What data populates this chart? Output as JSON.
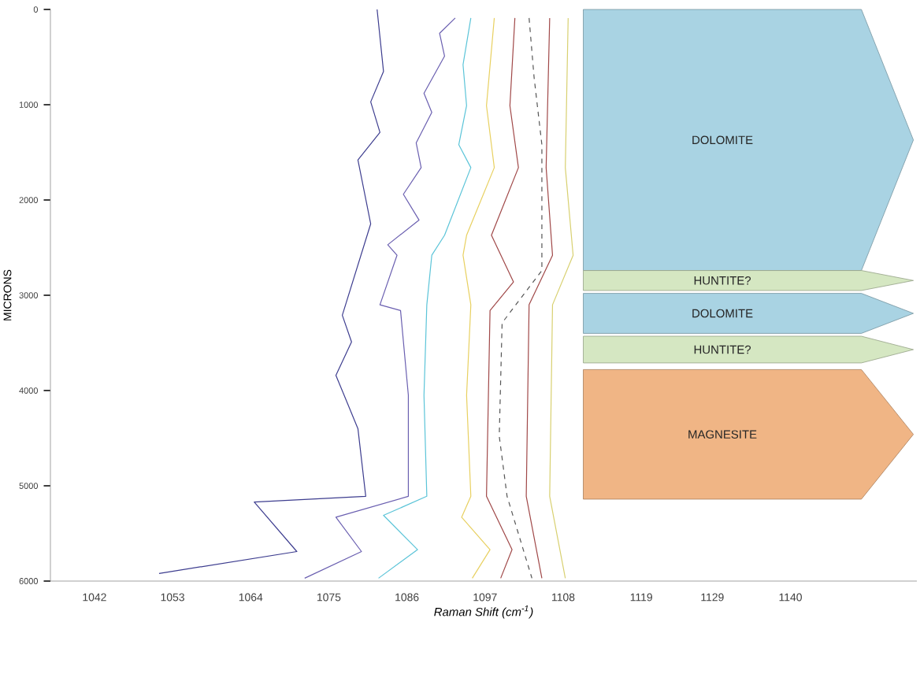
{
  "chart_data": {
    "type": "line",
    "xlabel": "Raman Shift (cm$^{-1}$)",
    "ylabel": "MICRONS",
    "xlim": [
      1035.8,
      1157.8
    ],
    "ylim": [
      6000,
      0
    ],
    "xticks": [
      1042,
      1053,
      1064,
      1075,
      1086,
      1097,
      1108,
      1119,
      1129,
      1140
    ],
    "yticks": [
      0,
      1000,
      2000,
      3000,
      4000,
      5000,
      6000
    ],
    "grid": false,
    "marker": "none",
    "line_style": "solid",
    "bands": [
      {
        "axis": "y",
        "from": 0,
        "to": 2740,
        "label": "DOLOMITE",
        "color": "#a9d3e3"
      },
      {
        "axis": "y",
        "from": 2740,
        "to": 2950,
        "label": "HUNTITE?",
        "color": "#d5e7c2"
      },
      {
        "axis": "y",
        "from": 2980,
        "to": 3400,
        "label": "DOLOMITE",
        "color": "#a9d3e3"
      },
      {
        "axis": "y",
        "from": 3430,
        "to": 3710,
        "label": "HUNTITE?",
        "color": "#d5e7c2"
      },
      {
        "axis": "y",
        "from": 3780,
        "to": 5140,
        "label": "MAGNESITE",
        "color": "#f0b585"
      }
    ],
    "series": [
      {
        "color": "#3d3d8f",
        "x": [
          1081.8,
          1082.7,
          1080.9,
          1082.2,
          1079.1,
          1080.9,
          1076.9,
          1078.2,
          1076.0,
          1079.1,
          1080.2,
          1064.5,
          1070.5,
          1051.1
        ],
        "values": [
          0,
          650,
          970,
          1290,
          1580,
          2250,
          3210,
          3490,
          3840,
          4400,
          5110,
          5170,
          5690,
          5920
        ]
      },
      {
        "color": "#6a5fb0",
        "x": [
          1092.8,
          1090.6,
          1091.3,
          1088.4,
          1089.5,
          1087.3,
          1088.0,
          1085.5,
          1087.7,
          1083.3,
          1084.6,
          1082.2,
          1085.1,
          1086.2,
          1086.2,
          1076.0,
          1079.6,
          1071.6
        ],
        "values": [
          90,
          250,
          490,
          880,
          1080,
          1400,
          1660,
          1940,
          2210,
          2470,
          2580,
          3100,
          3160,
          4050,
          5110,
          5330,
          5690,
          5970
        ]
      },
      {
        "color": "#5bc4d8",
        "x": [
          1095.0,
          1093.9,
          1094.4,
          1093.3,
          1095.0,
          1091.3,
          1089.5,
          1088.8,
          1088.4,
          1088.8,
          1082.7,
          1087.5,
          1082.0
        ],
        "values": [
          90,
          580,
          1010,
          1420,
          1660,
          2370,
          2580,
          3100,
          4050,
          5110,
          5310,
          5670,
          5970
        ]
      },
      {
        "color": "#e8d060",
        "x": [
          1098.3,
          1097.2,
          1098.3,
          1094.4,
          1093.9,
          1095.0,
          1094.4,
          1095.0,
          1093.7,
          1097.7,
          1095.2
        ],
        "values": [
          90,
          1010,
          1660,
          2370,
          2580,
          3100,
          4050,
          5110,
          5330,
          5670,
          5970
        ]
      },
      {
        "color": "#a04848",
        "x": [
          1101.2,
          1100.5,
          1101.7,
          1097.9,
          1101.0,
          1097.7,
          1097.2,
          1100.8,
          1099.2
        ],
        "values": [
          90,
          1010,
          1660,
          2370,
          2860,
          3160,
          5110,
          5670,
          5970
        ]
      },
      {
        "color": "#555555",
        "line_style": "dashed",
        "x": [
          1103.2,
          1103.9,
          1105.0,
          1105.0,
          1099.4,
          1099.0,
          1100.1,
          1103.6
        ],
        "values": [
          90,
          710,
          1420,
          2740,
          3290,
          4480,
          5110,
          5970
        ]
      },
      {
        "color": "#a04848",
        "x": [
          1106.1,
          1105.6,
          1106.5,
          1103.2,
          1102.8,
          1105.0
        ],
        "values": [
          90,
          1660,
          2580,
          3100,
          5110,
          5970
        ]
      },
      {
        "color": "#d8d070",
        "x": [
          1108.7,
          1108.3,
          1109.4,
          1106.5,
          1106.1,
          1108.3
        ],
        "values": [
          90,
          1660,
          2580,
          3100,
          5110,
          5970
        ]
      }
    ]
  }
}
